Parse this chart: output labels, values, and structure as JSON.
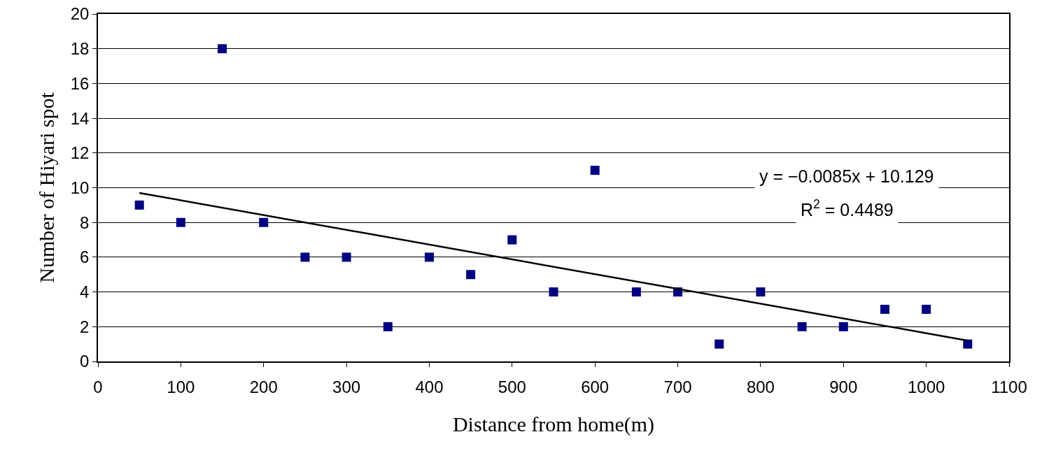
{
  "chart_data": {
    "type": "scatter",
    "xlabel": "Distance from home(m)",
    "ylabel": "Number of Hiyari spot",
    "x": [
      50,
      100,
      150,
      200,
      250,
      300,
      350,
      400,
      450,
      500,
      550,
      600,
      650,
      700,
      750,
      800,
      850,
      900,
      950,
      1000,
      1050
    ],
    "series": [
      {
        "color": "#000080",
        "values": [
          9,
          8,
          18,
          8,
          6,
          6,
          2,
          6,
          5,
          7,
          4,
          11,
          4,
          4,
          1,
          4,
          2,
          2,
          3,
          3,
          1
        ]
      },
      {
        "type": "line",
        "marker": "none",
        "color": "#000000",
        "x": [
          50,
          1050
        ],
        "values": [
          9.7,
          1.2
        ]
      }
    ],
    "annotations": [
      "y = −0.0085x + 10.129",
      "R$^{2}$ = 0.4489"
    ],
    "xlim": [
      0,
      1100
    ],
    "xticks": [
      0,
      100,
      200,
      300,
      400,
      500,
      600,
      700,
      800,
      900,
      1000,
      1100
    ],
    "ylim": [
      0,
      20
    ],
    "yticks": [
      0,
      2,
      4,
      6,
      8,
      10,
      12,
      14,
      16,
      18,
      20
    ],
    "grid": "y",
    "marker": "square"
  }
}
